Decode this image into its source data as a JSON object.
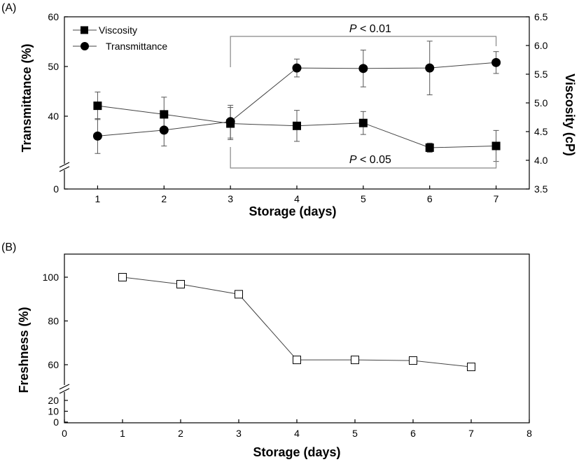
{
  "chart_data": [
    {
      "panel": "(A)",
      "type": "line",
      "title": "",
      "xlabel": "Storage (days)",
      "ylabel_left": "Transmittance (%)",
      "ylabel_right": "Viscosity (cP)",
      "x": [
        1,
        2,
        3,
        4,
        5,
        6,
        7
      ],
      "xlim": [
        0.5,
        7.5
      ],
      "x_ticks": [
        "1",
        "2",
        "3",
        "4",
        "5",
        "6",
        "7"
      ],
      "ylim_left": [
        0,
        60
      ],
      "y_ticks_left": [
        "0",
        "40",
        "50",
        "60"
      ],
      "y_axis_left_broken": true,
      "ylim_right": [
        3.5,
        6.5
      ],
      "y_ticks_right": [
        "3.5",
        "4.0",
        "4.5",
        "5.0",
        "5.5",
        "6.0",
        "6.5"
      ],
      "grid": false,
      "legend_position": "top-left",
      "series": [
        {
          "name": "Viscosity",
          "axis": "right",
          "marker": "filled-square",
          "values": [
            4.95,
            4.8,
            4.64,
            4.6,
            4.65,
            4.22,
            4.25
          ],
          "error": [
            0.24,
            0.3,
            0.28,
            0.27,
            0.2,
            0.08,
            0.27
          ]
        },
        {
          "name": "Transmittance",
          "axis": "left",
          "marker": "filled-circle",
          "values": [
            36,
            37.2,
            38.9,
            49.7,
            49.6,
            49.7,
            50.8
          ],
          "error": [
            3.5,
            3.2,
            3.3,
            1.8,
            3.7,
            5.4,
            2.2
          ]
        }
      ],
      "annotations": [
        {
          "text_italic": "P",
          "text_rest": " < 0.01",
          "from": 3,
          "to": 7,
          "position": "above"
        },
        {
          "text_italic": "P",
          "text_rest": " < 0.05",
          "from": 3,
          "to": 7,
          "position": "below"
        }
      ]
    },
    {
      "panel": "(B)",
      "type": "line",
      "title": "",
      "xlabel": "Storage (days)",
      "ylabel": "Freshness (%)",
      "x": [
        1,
        2,
        3,
        4,
        5,
        6,
        7
      ],
      "xlim": [
        0,
        8
      ],
      "x_ticks": [
        "0",
        "1",
        "2",
        "3",
        "4",
        "5",
        "6",
        "7",
        "8"
      ],
      "ylim": [
        0,
        110
      ],
      "y_ticks": [
        "0",
        "10",
        "20",
        "60",
        "80",
        "100"
      ],
      "y_axis_broken": true,
      "grid": false,
      "series": [
        {
          "marker": "open-square",
          "values": [
            100,
            96.8,
            92.2,
            62.2,
            62.2,
            61.9,
            59
          ]
        }
      ]
    }
  ]
}
